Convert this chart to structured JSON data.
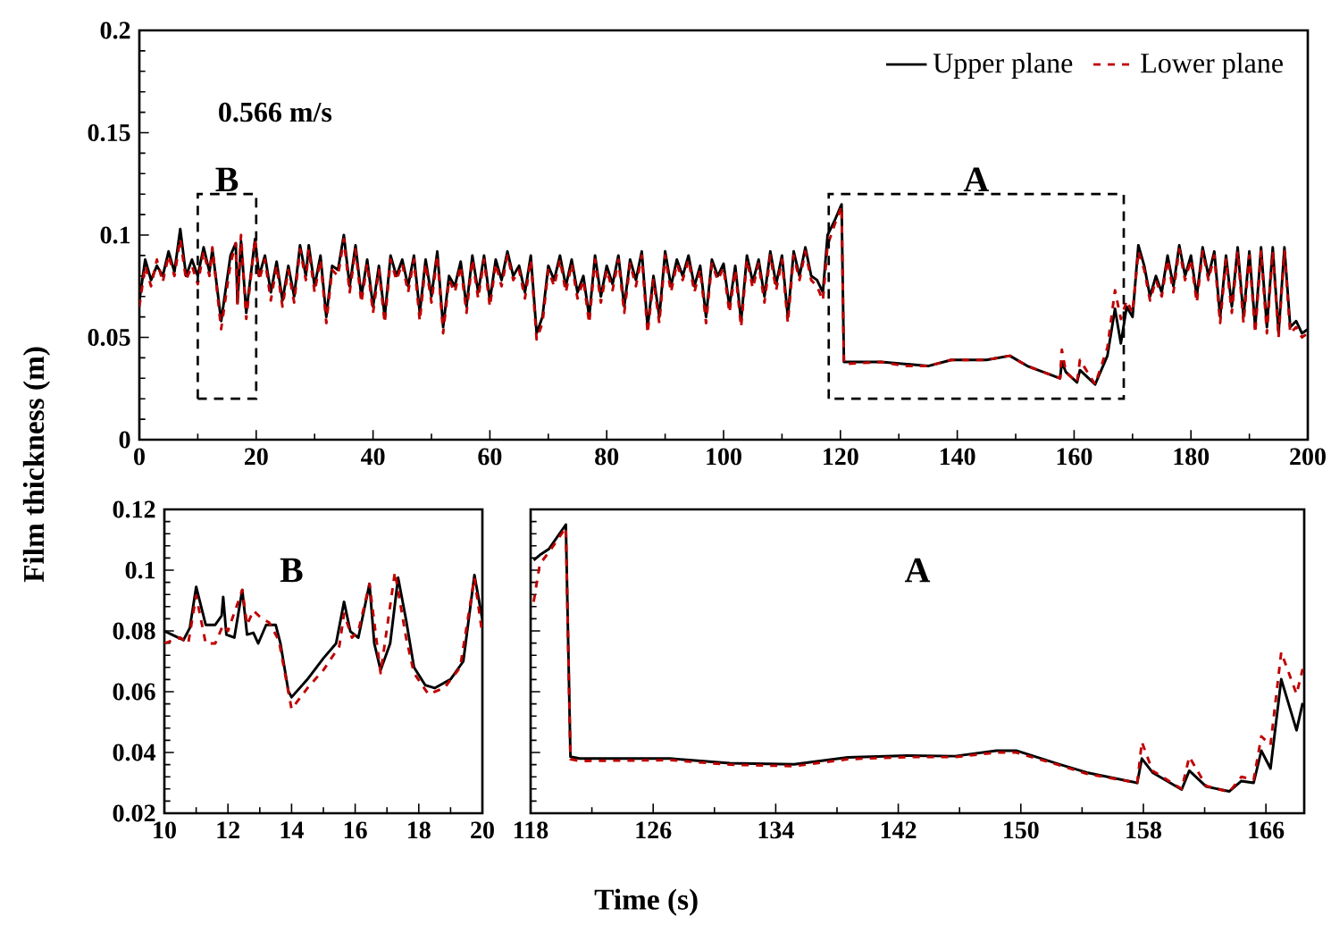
{
  "chart_data": [
    {
      "type": "line",
      "xlabel": "Time (s)",
      "ylabel": "Film thickness (m)",
      "annotations": [
        "**0.566 m/s**",
        "B",
        "A"
      ],
      "legend": "top right",
      "xlim": [
        0,
        200
      ],
      "ylim": [
        0,
        0.2
      ],
      "xticks": [
        0,
        20,
        40,
        60,
        80,
        100,
        120,
        140,
        160,
        180,
        200
      ],
      "yticks": [
        0,
        0.05,
        0.1,
        0.15,
        0.2
      ],
      "x": [
        0,
        1,
        2,
        3,
        4,
        5,
        6,
        7,
        8,
        9,
        10,
        11,
        12,
        12.5,
        14,
        15.6,
        16.5,
        16.8,
        17.4,
        18.3,
        19.8,
        20.5,
        21.5,
        22.5,
        23.5,
        24.5,
        25.5,
        26.5,
        27.5,
        28.5,
        29,
        30,
        31,
        32,
        33,
        34,
        35,
        36,
        37,
        38,
        39,
        40,
        41,
        42,
        43,
        44,
        45,
        46,
        47,
        48,
        49,
        50,
        51,
        52,
        53,
        54,
        55,
        56,
        57,
        58,
        59,
        60,
        61,
        62,
        63,
        64,
        65,
        66,
        67,
        68,
        69,
        70,
        71,
        72,
        73,
        74,
        75,
        76,
        77,
        78,
        79,
        80,
        81,
        82,
        83,
        84,
        85,
        86,
        87,
        88,
        89,
        90,
        91,
        92,
        93,
        94,
        95,
        96,
        97,
        98,
        99,
        100,
        101,
        102,
        103,
        104,
        105,
        106,
        107,
        108,
        109,
        110,
        111,
        112,
        113,
        114,
        115,
        116,
        117,
        117.8,
        119,
        120.2,
        120.6,
        127,
        131,
        135,
        139,
        145,
        149,
        152,
        157.6,
        157.9,
        158.6,
        160.5,
        161,
        163.6,
        165.7,
        167,
        168,
        169,
        170,
        171,
        172,
        173,
        174,
        175,
        176,
        177,
        178,
        179,
        180,
        181,
        182,
        183,
        184,
        185,
        186,
        187,
        188,
        189,
        190,
        191,
        192,
        193,
        194,
        195,
        196,
        197,
        198,
        199,
        200
      ],
      "series": [
        {
          "name": "Upper plane",
          "color": "#000000",
          "line_style": "solid",
          "values": [
            0.068,
            0.088,
            0.078,
            0.085,
            0.08,
            0.092,
            0.082,
            0.103,
            0.08,
            0.088,
            0.08,
            0.094,
            0.082,
            0.093,
            0.058,
            0.09,
            0.096,
            0.067,
            0.097,
            0.062,
            0.098,
            0.08,
            0.09,
            0.072,
            0.087,
            0.068,
            0.085,
            0.07,
            0.095,
            0.08,
            0.095,
            0.075,
            0.09,
            0.06,
            0.085,
            0.083,
            0.1,
            0.075,
            0.095,
            0.07,
            0.088,
            0.065,
            0.085,
            0.06,
            0.09,
            0.08,
            0.088,
            0.075,
            0.09,
            0.062,
            0.088,
            0.07,
            0.092,
            0.055,
            0.08,
            0.075,
            0.087,
            0.065,
            0.09,
            0.072,
            0.09,
            0.068,
            0.088,
            0.078,
            0.092,
            0.08,
            0.085,
            0.072,
            0.09,
            0.052,
            0.06,
            0.085,
            0.078,
            0.09,
            0.075,
            0.088,
            0.072,
            0.08,
            0.06,
            0.09,
            0.07,
            0.085,
            0.076,
            0.09,
            0.065,
            0.088,
            0.078,
            0.092,
            0.055,
            0.08,
            0.06,
            0.092,
            0.075,
            0.088,
            0.08,
            0.09,
            0.075,
            0.085,
            0.06,
            0.088,
            0.08,
            0.086,
            0.065,
            0.085,
            0.058,
            0.09,
            0.077,
            0.088,
            0.07,
            0.092,
            0.076,
            0.09,
            0.06,
            0.092,
            0.08,
            0.094,
            0.08,
            0.078,
            0.072,
            0.1,
            0.107,
            0.115,
            0.038,
            0.038,
            0.037,
            0.036,
            0.039,
            0.039,
            0.041,
            0.036,
            0.03,
            0.038,
            0.033,
            0.028,
            0.034,
            0.027,
            0.041,
            0.064,
            0.047,
            0.065,
            0.06,
            0.095,
            0.085,
            0.07,
            0.08,
            0.072,
            0.09,
            0.075,
            0.095,
            0.08,
            0.09,
            0.07,
            0.094,
            0.08,
            0.092,
            0.06,
            0.09,
            0.065,
            0.094,
            0.06,
            0.092,
            0.055,
            0.094,
            0.055,
            0.094,
            0.052,
            0.094,
            0.055,
            0.058,
            0.052,
            0.054
          ]
        },
        {
          "name": "Lower plane",
          "color": "#c00000",
          "line_style": "dashed",
          "values": [
            0.065,
            0.085,
            0.075,
            0.088,
            0.077,
            0.09,
            0.08,
            0.098,
            0.078,
            0.085,
            0.076,
            0.092,
            0.08,
            0.094,
            0.054,
            0.086,
            0.096,
            0.066,
            0.1,
            0.059,
            0.098,
            0.078,
            0.088,
            0.068,
            0.085,
            0.065,
            0.083,
            0.067,
            0.093,
            0.078,
            0.093,
            0.072,
            0.088,
            0.057,
            0.083,
            0.08,
            0.098,
            0.072,
            0.093,
            0.067,
            0.086,
            0.062,
            0.083,
            0.057,
            0.088,
            0.078,
            0.086,
            0.072,
            0.088,
            0.058,
            0.086,
            0.067,
            0.09,
            0.052,
            0.078,
            0.072,
            0.085,
            0.062,
            0.088,
            0.069,
            0.088,
            0.065,
            0.086,
            0.075,
            0.09,
            0.078,
            0.083,
            0.069,
            0.088,
            0.049,
            0.057,
            0.083,
            0.075,
            0.088,
            0.072,
            0.086,
            0.069,
            0.078,
            0.057,
            0.088,
            0.067,
            0.083,
            0.073,
            0.088,
            0.062,
            0.086,
            0.075,
            0.09,
            0.052,
            0.078,
            0.057,
            0.09,
            0.072,
            0.086,
            0.078,
            0.088,
            0.072,
            0.083,
            0.057,
            0.086,
            0.078,
            0.084,
            0.062,
            0.083,
            0.055,
            0.088,
            0.074,
            0.086,
            0.067,
            0.09,
            0.073,
            0.088,
            0.057,
            0.09,
            0.078,
            0.092,
            0.078,
            0.075,
            0.068,
            0.095,
            0.105,
            0.114,
            0.037,
            0.038,
            0.036,
            0.036,
            0.039,
            0.039,
            0.041,
            0.036,
            0.03,
            0.044,
            0.033,
            0.028,
            0.039,
            0.027,
            0.045,
            0.073,
            0.059,
            0.068,
            0.062,
            0.092,
            0.083,
            0.068,
            0.078,
            0.07,
            0.088,
            0.072,
            0.093,
            0.078,
            0.088,
            0.067,
            0.092,
            0.078,
            0.09,
            0.057,
            0.088,
            0.062,
            0.092,
            0.057,
            0.09,
            0.052,
            0.092,
            0.052,
            0.092,
            0.05,
            0.092,
            0.052,
            0.055,
            0.05,
            0.052
          ]
        }
      ]
    },
    {
      "type": "line",
      "annotations": [
        "B"
      ],
      "xlim": [
        10,
        20
      ],
      "ylim": [
        0.02,
        0.12
      ],
      "xticks": [
        10,
        12,
        14,
        16,
        18,
        20
      ],
      "yticks": [
        0.02,
        0.04,
        0.06,
        0.08,
        0.1,
        0.12
      ],
      "series": [
        {
          "color": "#000000",
          "line_style": "solid",
          "x": [
            10,
            10.4,
            10.6,
            10.8,
            11,
            11.3,
            11.6,
            11.8,
            11.85,
            11.95,
            12.2,
            12.45,
            12.6,
            12.8,
            12.95,
            13.2,
            13.5,
            13.65,
            13.9,
            14,
            14.5,
            15,
            15.4,
            15.65,
            15.85,
            16.1,
            16.45,
            16.6,
            16.8,
            17.1,
            17.35,
            17.6,
            17.85,
            18.2,
            18.5,
            19,
            19.4,
            19.75,
            20
          ],
          "values": [
            0.08,
            0.078,
            0.077,
            0.081,
            0.0945,
            0.082,
            0.082,
            0.085,
            0.0912,
            0.0788,
            0.0778,
            0.0935,
            0.0788,
            0.0794,
            0.0759,
            0.082,
            0.082,
            0.0759,
            0.0602,
            0.0582,
            0.0641,
            0.071,
            0.0759,
            0.0896,
            0.0798,
            0.0778,
            0.0955,
            0.0759,
            0.0671,
            0.0759,
            0.0975,
            0.0837,
            0.068,
            0.0622,
            0.0612,
            0.0641,
            0.07,
            0.0984,
            0.0837
          ]
        },
        {
          "color": "#c00000",
          "line_style": "dashed",
          "x": [
            10,
            10.5,
            10.75,
            11,
            11.3,
            11.6,
            11.85,
            12,
            12.45,
            12.6,
            12.8,
            13,
            13.3,
            13.6,
            14,
            14.5,
            15,
            15.5,
            15.65,
            15.9,
            16.1,
            16.45,
            16.8,
            17.25,
            17.6,
            17.85,
            18.3,
            18.8,
            19.3,
            19.75,
            20
          ],
          "values": [
            0.0759,
            0.0778,
            0.0759,
            0.0916,
            0.0759,
            0.0759,
            0.082,
            0.08,
            0.0935,
            0.082,
            0.0867,
            0.0847,
            0.0827,
            0.0769,
            0.0543,
            0.0612,
            0.0671,
            0.0749,
            0.0857,
            0.0778,
            0.08,
            0.0955,
            0.0661,
            0.0994,
            0.0778,
            0.0661,
            0.0592,
            0.0612,
            0.068,
            0.0975,
            0.0788
          ]
        }
      ]
    },
    {
      "type": "line",
      "annotations": [
        "A"
      ],
      "xlim": [
        118,
        168.5
      ],
      "ylim": [
        0.02,
        0.12
      ],
      "xticks": [
        118,
        126,
        134,
        142,
        150,
        158,
        166
      ],
      "yticks": [
        0.02,
        0.04,
        0.06,
        0.08,
        0.1,
        0.12
      ],
      "tick_labels": "x",
      "series": [
        {
          "color": "#000000",
          "line_style": "solid",
          "x": [
            118.2,
            118.6,
            119.2,
            120.3,
            120.6,
            121.2,
            127.1,
            131.0,
            135.2,
            138.7,
            142.6,
            145.7,
            148.4,
            149.7,
            152.4,
            154.3,
            157.6,
            157.9,
            158.6,
            160.5,
            161.0,
            162.1,
            163.6,
            164.4,
            165.2,
            165.7,
            166.3,
            167.0,
            168.0,
            168.4
          ],
          "values": [
            0.1033,
            0.105,
            0.107,
            0.115,
            0.0386,
            0.038,
            0.038,
            0.0365,
            0.0361,
            0.0384,
            0.039,
            0.0388,
            0.0406,
            0.0406,
            0.0363,
            0.0334,
            0.03,
            0.038,
            0.0334,
            0.0278,
            0.034,
            0.0288,
            0.0272,
            0.0306,
            0.03,
            0.0406,
            0.0347,
            0.0641,
            0.0473,
            0.0563
          ]
        },
        {
          "color": "#c00000",
          "line_style": "dashed",
          "x": [
            118.2,
            118.6,
            119.2,
            120.3,
            120.6,
            121.2,
            127.1,
            131.0,
            135.2,
            138.7,
            142.6,
            145.7,
            148.4,
            149.7,
            152.4,
            154.3,
            157.6,
            157.9,
            158.6,
            160.5,
            161.0,
            162.1,
            163.6,
            164.4,
            165.2,
            165.7,
            166.3,
            167.0,
            168.0,
            168.4
          ],
          "values": [
            0.0896,
            0.102,
            0.106,
            0.114,
            0.0378,
            0.0372,
            0.0375,
            0.036,
            0.0355,
            0.0378,
            0.0385,
            0.0385,
            0.04,
            0.04,
            0.036,
            0.033,
            0.03,
            0.0435,
            0.034,
            0.028,
            0.0386,
            0.029,
            0.027,
            0.032,
            0.031,
            0.0453,
            0.0425,
            0.073,
            0.0592,
            0.0675
          ]
        }
      ]
    }
  ]
}
